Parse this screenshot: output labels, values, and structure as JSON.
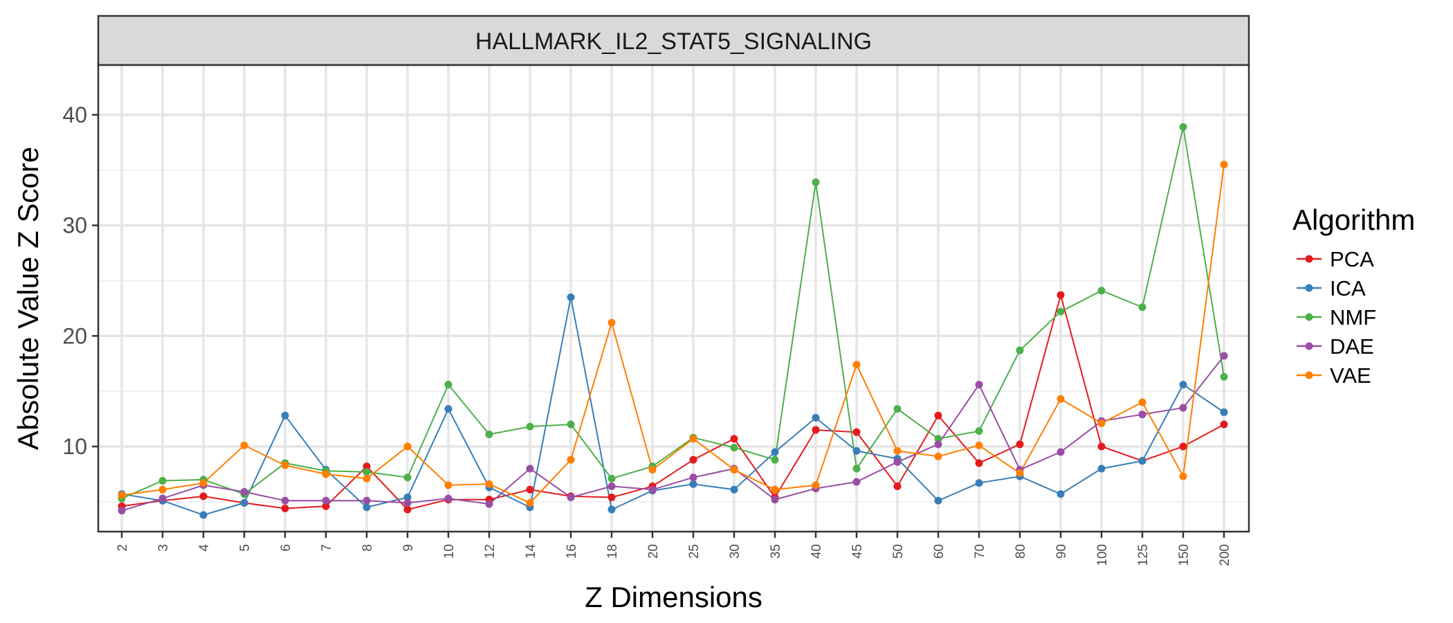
{
  "chart_data": {
    "type": "line",
    "title": "HALLMARK_IL2_STAT5_SIGNALING",
    "xlabel": "Z Dimensions",
    "ylabel": "Absolute Value Z Score",
    "categories": [
      "2",
      "3",
      "4",
      "5",
      "6",
      "7",
      "8",
      "9",
      "10",
      "12",
      "14",
      "16",
      "18",
      "20",
      "25",
      "30",
      "35",
      "40",
      "45",
      "50",
      "60",
      "70",
      "80",
      "90",
      "100",
      "125",
      "150",
      "200"
    ],
    "yticks": [
      10,
      20,
      30,
      40
    ],
    "ylim": [
      2.3,
      44.5
    ],
    "grid": true,
    "legend": {
      "title": "Algorithm",
      "placement": "right"
    },
    "series": [
      {
        "name": "PCA",
        "color": "#e41a1c",
        "values": [
          4.6,
          5.1,
          5.5,
          4.9,
          4.4,
          4.6,
          8.2,
          4.3,
          5.2,
          5.2,
          6.1,
          5.5,
          5.4,
          6.4,
          8.8,
          10.7,
          5.4,
          11.5,
          11.3,
          6.4,
          12.8,
          8.5,
          10.2,
          23.7,
          10.0,
          8.7,
          10.0,
          12.0
        ]
      },
      {
        "name": "ICA",
        "color": "#377eb8",
        "values": [
          5.7,
          5.1,
          3.8,
          4.9,
          12.8,
          7.9,
          4.5,
          5.4,
          13.4,
          6.3,
          4.5,
          23.5,
          4.3,
          6.0,
          6.6,
          6.1,
          9.5,
          12.6,
          9.6,
          8.9,
          5.1,
          6.7,
          7.3,
          5.7,
          8.0,
          8.7,
          15.6,
          13.1
        ]
      },
      {
        "name": "NMF",
        "color": "#4daf4a",
        "values": [
          5.3,
          6.9,
          7.0,
          5.7,
          8.5,
          7.8,
          7.7,
          7.2,
          15.6,
          11.1,
          11.8,
          12.0,
          7.1,
          8.2,
          10.8,
          9.9,
          8.8,
          33.9,
          8.0,
          13.4,
          10.7,
          11.4,
          18.7,
          22.2,
          24.1,
          22.6,
          38.9,
          16.3
        ]
      },
      {
        "name": "DAE",
        "color": "#984ea3",
        "values": [
          4.2,
          5.3,
          6.5,
          5.9,
          5.1,
          5.1,
          5.1,
          4.9,
          5.3,
          4.8,
          8.0,
          5.4,
          6.4,
          6.1,
          7.2,
          8.0,
          5.2,
          6.2,
          6.8,
          8.6,
          10.2,
          15.6,
          7.9,
          9.5,
          12.3,
          12.9,
          13.5,
          18.2
        ]
      },
      {
        "name": "VAE",
        "color": "#ff7f00",
        "values": [
          5.6,
          6.1,
          6.7,
          10.1,
          8.3,
          7.5,
          7.1,
          10.0,
          6.5,
          6.6,
          4.9,
          8.8,
          21.2,
          7.9,
          10.7,
          7.9,
          6.1,
          6.5,
          17.4,
          9.6,
          9.1,
          10.1,
          7.6,
          14.3,
          12.1,
          14.0,
          7.3,
          35.5
        ]
      }
    ]
  }
}
